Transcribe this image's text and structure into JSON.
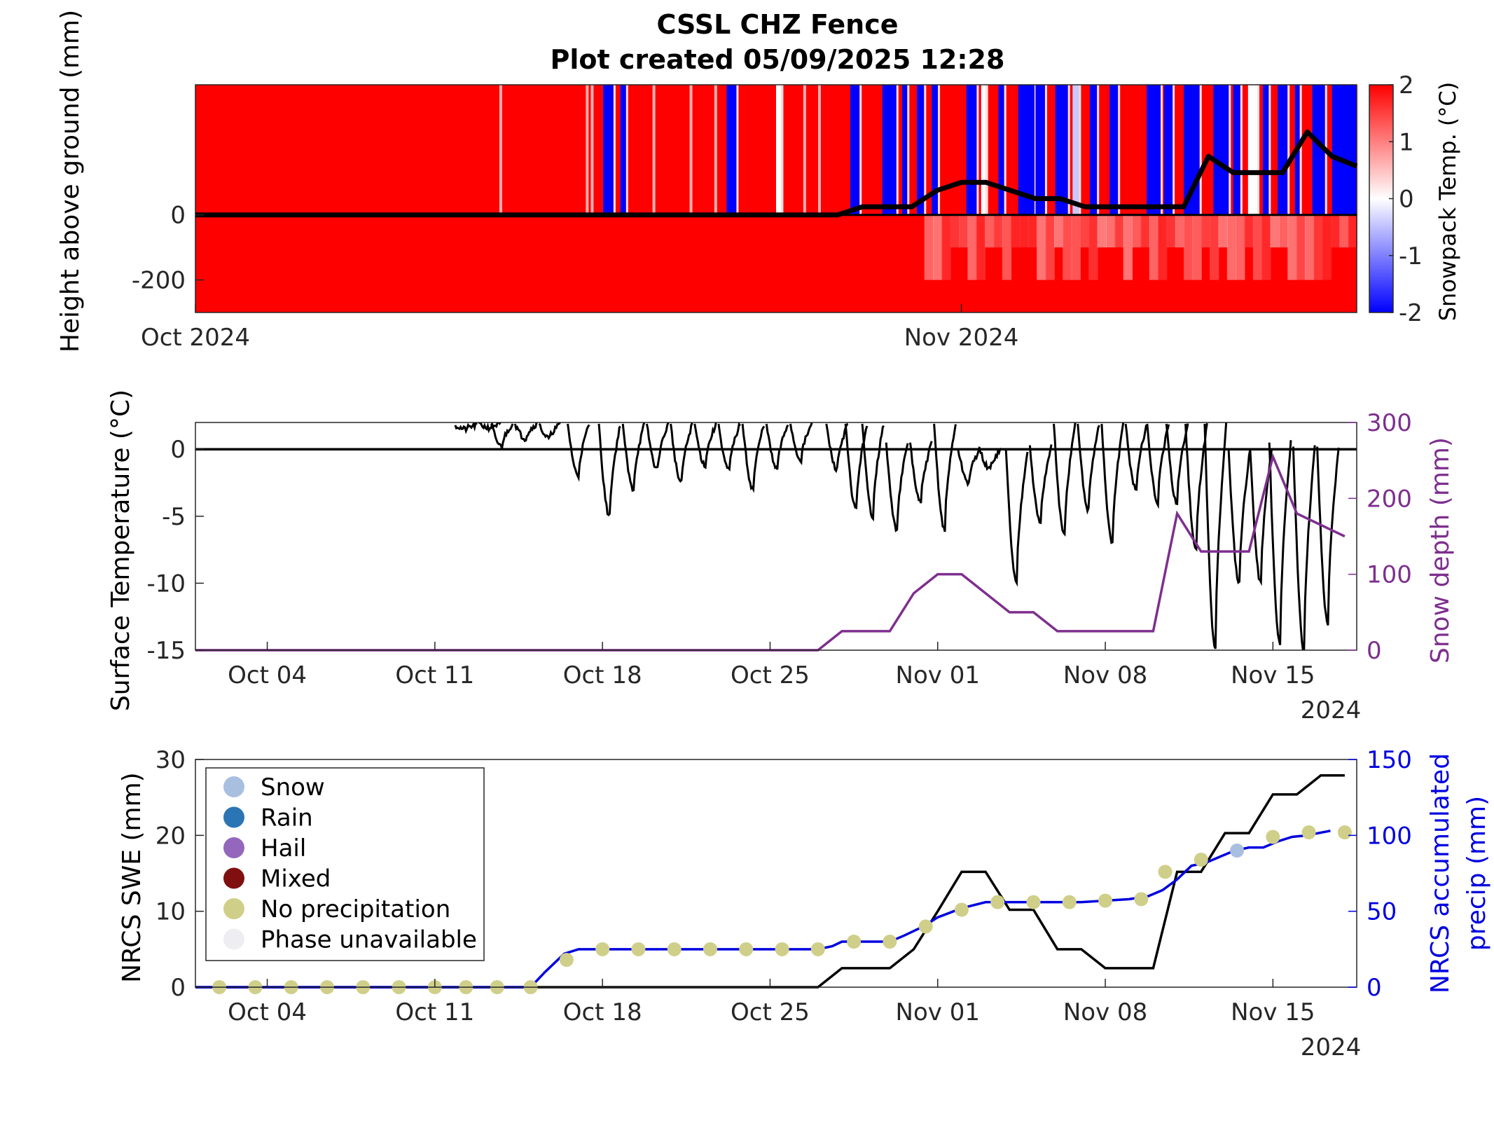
{
  "title_line1": "CSSL CHZ Fence",
  "title_line2": "Plot created 05/09/2025 12:28",
  "chart_data": [
    {
      "type": "heatmap",
      "panel": "snowpack-temperature",
      "ylabel": "Height above ground (mm)",
      "yticks": [
        0,
        -200
      ],
      "x_tick_labels": [
        "Oct 2024",
        "Nov 2024"
      ],
      "x_ticks_day": [
        0,
        31
      ],
      "xlim_day": [
        0,
        47
      ],
      "ylim": [
        -300,
        400
      ],
      "colorbar": {
        "label": "Snowpack Temp. (°C)",
        "ticks": [
          2,
          1,
          0,
          -1,
          -2
        ],
        "range": [
          -2,
          2
        ],
        "colors": [
          "#0000ff",
          "#ffffff",
          "#ff0000"
        ]
      },
      "snow_depth_line": {
        "x_day": [
          0,
          26,
          27,
          28,
          29,
          30,
          31,
          32,
          33,
          34,
          35,
          36,
          37,
          38,
          39,
          40,
          41,
          42,
          43,
          44,
          45,
          46,
          47
        ],
        "y_mm": [
          0,
          0,
          25,
          25,
          25,
          75,
          100,
          100,
          75,
          50,
          50,
          25,
          25,
          25,
          25,
          25,
          180,
          130,
          130,
          130,
          255,
          180,
          150
        ]
      },
      "cold_days_above_ground": [
        16.5,
        17.2,
        21.5,
        23.5,
        26.5,
        27.8,
        28.6,
        29.2,
        29.8,
        31.2,
        31.8,
        32.5,
        33.3,
        34.0,
        34.8,
        35.5,
        36.2,
        37.0,
        38.5,
        39.2,
        40.0,
        41.2,
        42.0,
        42.6,
        43.2,
        43.8,
        44.5,
        45.2,
        46.0,
        46.6
      ]
    },
    {
      "type": "line",
      "panel": "surface-temperature",
      "ylabel": "Surface Temperature (°C)",
      "ylabel_right": "Snow depth (mm)",
      "ylim": [
        -15,
        2
      ],
      "ylim_right": [
        0,
        300
      ],
      "yticks": [
        0,
        -5,
        -10,
        -15
      ],
      "yticks_right": [
        300,
        200,
        100,
        0
      ],
      "x_tick_labels": [
        "Oct 04",
        "Oct 11",
        "Oct 18",
        "Oct 25",
        "Nov 01",
        "Nov 08",
        "Nov 15"
      ],
      "x_ticks_day": [
        4,
        11,
        18,
        25,
        32,
        39,
        46
      ],
      "xlim_day": [
        1,
        49.5
      ],
      "year_label": "2024",
      "zero_line": 0,
      "surface_temp": {
        "minima_day": [
          12.3,
          13.3,
          13.8,
          14.8,
          15.8,
          17.0,
          18.3,
          19.3,
          20.3,
          21.3,
          22.3,
          23.3,
          24.3,
          25.3,
          26.3,
          27.8,
          28.6,
          29.3,
          30.3,
          31.3,
          32.3,
          33.3,
          34.2,
          35.3,
          36.3,
          37.3,
          38.3,
          39.3,
          40.3,
          41.2,
          42.0,
          42.8,
          43.6,
          44.6,
          45.5,
          46.3,
          47.3,
          48.3
        ],
        "minima_temp": [
          1.5,
          1.6,
          0.2,
          0.8,
          0.8,
          -2.0,
          -5.0,
          -3.0,
          -1.5,
          -2.5,
          -1.2,
          -1.6,
          -3.0,
          -1.5,
          -0.8,
          -1.5,
          -4.5,
          -5.0,
          -6.0,
          -4.0,
          -6.0,
          -2.5,
          -1.5,
          -10.0,
          -5.5,
          -6.5,
          -4.5,
          -7.0,
          -3.0,
          -4.0,
          -4.0,
          -7.5,
          -15.0,
          -10.0,
          -10.0,
          -14.5,
          -15.0,
          -13.0
        ],
        "maxima_temp": [
          1.8,
          1.9,
          1.9,
          1.9,
          1.9,
          1.9,
          1.9,
          1.9,
          1.9,
          1.9,
          1.9,
          1.9,
          1.9,
          1.9,
          1.9,
          1.9,
          1.9,
          1.9,
          0.5,
          0.5,
          1.9,
          0.0,
          0.0,
          0.0,
          0.3,
          1.9,
          1.9,
          1.9,
          1.9,
          1.9,
          1.9,
          1.9,
          1.9,
          0.0,
          0.0,
          0.5,
          0.2,
          0.2
        ]
      },
      "snow_depth": {
        "x_day": [
          1,
          27.0,
          28.0,
          30.0,
          31.0,
          32.0,
          33.0,
          34.0,
          35.0,
          36.0,
          37.0,
          38.0,
          39.0,
          40.0,
          41.0,
          42.0,
          43.0,
          44.0,
          45.0,
          46.0,
          47.0,
          48.0,
          49.0
        ],
        "y_mm": [
          0,
          0,
          25,
          25,
          75,
          100,
          100,
          75,
          50,
          50,
          25,
          25,
          25,
          25,
          25,
          180,
          130,
          130,
          130,
          255,
          180,
          165,
          150
        ]
      }
    },
    {
      "type": "line",
      "panel": "nrcs-swe-precip",
      "ylabel": "NRCS SWE (mm)",
      "ylabel_right_line1": "NRCS accumulated",
      "ylabel_right_line2": "precip (mm)",
      "ylim": [
        0,
        30
      ],
      "ylim_right": [
        0,
        150
      ],
      "yticks": [
        30,
        20,
        10,
        0
      ],
      "yticks_right": [
        150,
        100,
        50,
        0
      ],
      "x_tick_labels": [
        "Oct 04",
        "Oct 11",
        "Oct 18",
        "Oct 25",
        "Nov 01",
        "Nov 08",
        "Nov 15"
      ],
      "x_ticks_day": [
        4,
        11,
        18,
        25,
        32,
        39,
        46
      ],
      "xlim_day": [
        1,
        49.5
      ],
      "year_label": "2024",
      "swe": {
        "x_day": [
          1,
          27.0,
          28.0,
          30.0,
          31.0,
          32.0,
          33.0,
          34.0,
          35.0,
          36.0,
          37.0,
          38.0,
          39.0,
          40.0,
          41.0,
          42.0,
          43.0,
          44.0,
          45.0,
          46.0,
          47.0,
          48.0,
          49.0
        ],
        "y_mm": [
          0,
          0,
          2.5,
          2.5,
          5.0,
          10.0,
          15.2,
          15.2,
          10.2,
          10.2,
          5.0,
          5.0,
          2.5,
          2.5,
          2.5,
          15.2,
          15.2,
          20.3,
          20.3,
          25.4,
          25.4,
          27.9,
          27.9
        ]
      },
      "precip": {
        "x_day": [
          1,
          15.0,
          15.6,
          16.4,
          17.0,
          18.4,
          19.6,
          21.0,
          22.6,
          24.0,
          25.6,
          27.0,
          27.6,
          28.0,
          29.2,
          30.0,
          30.6,
          31.4,
          32.0,
          33.0,
          34.0,
          35.0,
          36.0,
          37.0,
          38.0,
          39.0,
          40.0,
          40.8,
          41.4,
          42.0,
          42.6,
          43.2,
          43.8,
          44.4,
          45.0,
          45.6,
          46.2,
          46.8,
          47.4,
          48.4
        ],
        "y_mm": [
          0,
          0,
          10,
          22,
          25,
          25,
          25,
          25,
          25,
          25,
          25,
          25,
          27,
          30,
          30,
          30,
          34,
          40,
          46,
          52,
          56,
          56,
          56,
          56,
          56,
          57,
          58,
          60,
          64,
          71,
          80,
          82,
          86,
          90,
          92,
          92,
          96,
          99,
          100,
          103
        ]
      },
      "markers": {
        "x_day": [
          2.0,
          3.5,
          5.0,
          6.5,
          8.0,
          9.5,
          11.0,
          12.3,
          13.6,
          15.0,
          16.5,
          18.0,
          19.5,
          21.0,
          22.5,
          24.0,
          25.5,
          27.0,
          28.5,
          30.0,
          31.5,
          33.0,
          34.5,
          36.0,
          37.5,
          39.0,
          40.5,
          41.5,
          43.0,
          44.5,
          46.0,
          47.5,
          49.0
        ],
        "y_mm": [
          0,
          0,
          0,
          0,
          0,
          0,
          0,
          0,
          0,
          0,
          18,
          25,
          25,
          25,
          25,
          25,
          25,
          25,
          30,
          30,
          40,
          51,
          56,
          56,
          56,
          57,
          58,
          76,
          84,
          90,
          99,
          102,
          102
        ],
        "phase": [
          "none",
          "none",
          "none",
          "none",
          "none",
          "none",
          "none",
          "none",
          "none",
          "none",
          "none",
          "none",
          "none",
          "none",
          "none",
          "none",
          "none",
          "none",
          "none",
          "none",
          "none",
          "none",
          "none",
          "none",
          "none",
          "none",
          "none",
          "none",
          "none",
          "snow",
          "none",
          "none",
          "none"
        ]
      },
      "legend": {
        "placement": "top-left",
        "entries": [
          {
            "label": "Snow",
            "color": "#a9bfe0"
          },
          {
            "label": "Rain",
            "color": "#2b75b5"
          },
          {
            "label": "Hail",
            "color": "#9467bd"
          },
          {
            "label": "Mixed",
            "color": "#800f0f"
          },
          {
            "label": "No precipitation",
            "color": "#cfcf8a"
          },
          {
            "label": "Phase unavailable",
            "color": "#eeeef2"
          }
        ]
      }
    }
  ]
}
